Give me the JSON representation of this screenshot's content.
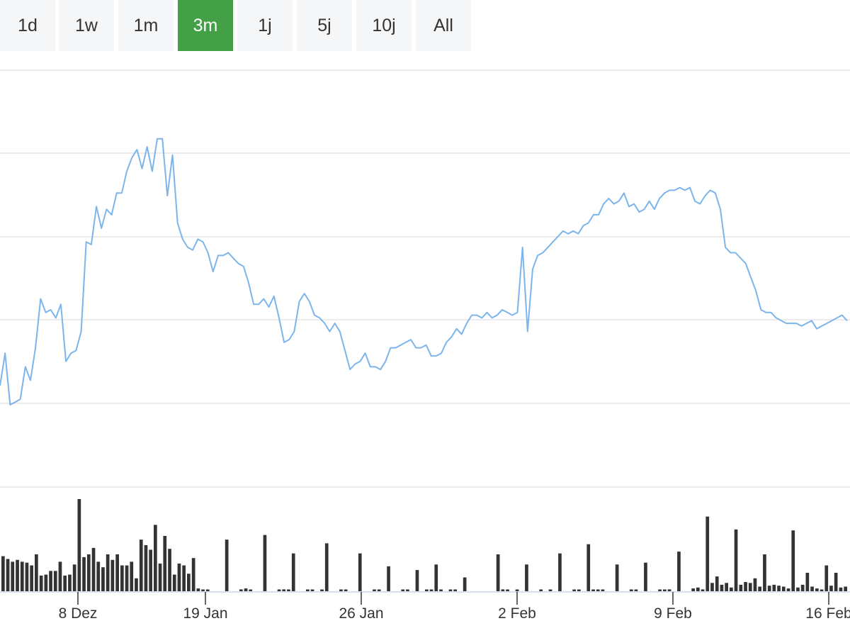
{
  "range_selector": {
    "buttons": [
      {
        "label": "1d",
        "active": false
      },
      {
        "label": "1w",
        "active": false
      },
      {
        "label": "1m",
        "active": false
      },
      {
        "label": "3m",
        "active": true
      },
      {
        "label": "1j",
        "active": false
      },
      {
        "label": "5j",
        "active": false
      },
      {
        "label": "10j",
        "active": false
      },
      {
        "label": "All",
        "active": false
      }
    ],
    "active_color": "#43a047",
    "inactive_color": "#f5f6f7"
  },
  "chart_data": {
    "type": "line",
    "title": "",
    "xlabel": "",
    "ylabel": "",
    "line_color": "#7cb5ec",
    "volume_color": "#333333",
    "grid": true,
    "x_tick_labels": [
      "8 Dez",
      "19 Jan",
      "26 Jan",
      "2 Feb",
      "9 Feb",
      "16 Feb"
    ],
    "price_series": [
      0.07,
      0.19,
      0.0,
      0.01,
      0.02,
      0.14,
      0.09,
      0.21,
      0.39,
      0.34,
      0.35,
      0.32,
      0.37,
      0.16,
      0.19,
      0.2,
      0.27,
      0.6,
      0.59,
      0.73,
      0.65,
      0.72,
      0.7,
      0.78,
      0.78,
      0.86,
      0.91,
      0.94,
      0.87,
      0.95,
      0.86,
      0.98,
      0.98,
      0.77,
      0.92,
      0.67,
      0.61,
      0.58,
      0.57,
      0.61,
      0.6,
      0.56,
      0.49,
      0.55,
      0.55,
      0.56,
      0.54,
      0.52,
      0.51,
      0.45,
      0.37,
      0.37,
      0.39,
      0.36,
      0.4,
      0.32,
      0.23,
      0.24,
      0.27,
      0.38,
      0.41,
      0.38,
      0.33,
      0.32,
      0.3,
      0.27,
      0.3,
      0.27,
      0.2,
      0.13,
      0.15,
      0.16,
      0.19,
      0.14,
      0.14,
      0.13,
      0.16,
      0.21,
      0.21,
      0.22,
      0.23,
      0.24,
      0.21,
      0.21,
      0.22,
      0.18,
      0.18,
      0.19,
      0.23,
      0.25,
      0.28,
      0.26,
      0.3,
      0.33,
      0.33,
      0.32,
      0.34,
      0.32,
      0.33,
      0.35,
      0.34,
      0.33,
      0.34,
      0.58,
      0.27,
      0.5,
      0.55,
      0.56,
      0.58,
      0.6,
      0.62,
      0.64,
      0.63,
      0.64,
      0.63,
      0.66,
      0.67,
      0.7,
      0.7,
      0.74,
      0.76,
      0.74,
      0.75,
      0.78,
      0.73,
      0.74,
      0.71,
      0.72,
      0.75,
      0.72,
      0.76,
      0.78,
      0.79,
      0.79,
      0.8,
      0.79,
      0.8,
      0.75,
      0.74,
      0.77,
      0.79,
      0.78,
      0.72,
      0.58,
      0.56,
      0.56,
      0.54,
      0.52,
      0.47,
      0.42,
      0.35,
      0.34,
      0.34,
      0.32,
      0.31,
      0.3,
      0.3,
      0.3,
      0.29,
      0.3,
      0.31,
      0.28,
      0.29,
      0.3,
      0.31,
      0.32,
      0.33,
      0.31
    ],
    "volume_series": [
      0.38,
      0.35,
      0.32,
      0.34,
      0.32,
      0.31,
      0.28,
      0.4,
      0.17,
      0.18,
      0.22,
      0.22,
      0.32,
      0.17,
      0.18,
      0.29,
      1.0,
      0.37,
      0.4,
      0.47,
      0.32,
      0.26,
      0.4,
      0.34,
      0.4,
      0.28,
      0.28,
      0.32,
      0.14,
      0.56,
      0.5,
      0.45,
      0.72,
      0.3,
      0.6,
      0.46,
      0.18,
      0.3,
      0.28,
      0.19,
      0.36,
      0.03,
      0.01,
      0.01,
      0.0,
      0.0,
      0.0,
      0.56,
      0.0,
      0.0,
      0.02,
      0.03,
      0.01,
      0.0,
      0.0,
      0.61,
      0.0,
      0.0,
      0.01,
      0.02,
      0.01,
      0.41,
      0.0,
      0.0,
      0.01,
      0.01,
      0.0,
      0.01,
      0.52,
      0.0,
      0.0,
      0.01,
      0.01,
      0.0,
      0.0,
      0.41,
      0.0,
      0.0,
      0.01,
      0.01,
      0.0,
      0.27,
      0.0,
      0.0,
      0.01,
      0.01,
      0.0,
      0.23,
      0.0,
      0.01,
      0.01,
      0.29,
      0.01,
      0.0,
      0.01,
      0.01,
      0.0,
      0.15,
      0.0,
      0.0,
      0.0,
      0.0,
      0.0,
      0.0,
      0.4,
      0.02,
      0.01,
      0.0,
      0.01,
      0.0,
      0.29,
      0.0,
      0.0,
      0.01,
      0.0,
      0.01,
      0.0,
      0.41,
      0.0,
      0.0,
      0.01,
      0.01,
      0.0,
      0.51,
      0.01,
      0.01,
      0.01,
      0.0,
      0.0,
      0.29,
      0.0,
      0.0,
      0.01,
      0.01,
      0.0,
      0.31,
      0.0,
      0.0,
      0.01,
      0.01,
      0.02,
      0.0,
      0.43,
      0.0,
      0.0,
      0.03,
      0.04,
      0.02,
      0.81,
      0.09,
      0.16,
      0.07,
      0.09,
      0.04,
      0.67,
      0.07,
      0.1,
      0.09,
      0.14,
      0.05,
      0.4,
      0.06,
      0.07,
      0.06,
      0.05,
      0.03,
      0.66,
      0.04,
      0.07,
      0.2,
      0.05,
      0.03,
      0.01,
      0.28,
      0.06,
      0.2,
      0.04,
      0.05
    ]
  }
}
